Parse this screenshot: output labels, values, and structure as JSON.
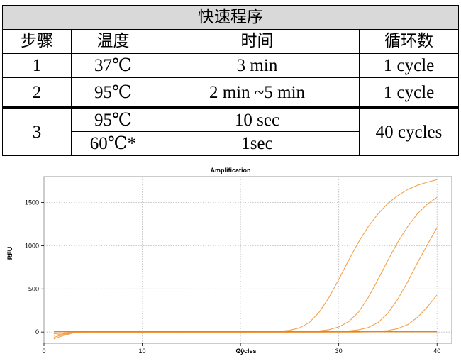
{
  "protocol": {
    "title": "快速程序",
    "headers": [
      "步骤",
      "温度",
      "时间",
      "循环数"
    ],
    "rows": [
      {
        "step": "1",
        "temp": "37℃",
        "time": "3 min",
        "cycles": "1 cycle"
      },
      {
        "step": "2",
        "temp": "95℃",
        "time": "2 min ~5 min",
        "cycles": "1 cycle"
      },
      {
        "step": "3",
        "temp_a": "95℃",
        "time_a": "10 sec",
        "temp_b": "60℃*",
        "time_b": "1sec",
        "cycles": "40 cycles"
      }
    ]
  },
  "chart_data": {
    "type": "line",
    "title": "Amplification",
    "xlabel": "Cycles",
    "ylabel": "RFU",
    "xlim": [
      0,
      41.5
    ],
    "ylim": [
      -130,
      1800
    ],
    "xticks": [
      0,
      10,
      20,
      30,
      40
    ],
    "yticks": [
      0,
      500,
      1000,
      1500
    ],
    "grid": true,
    "line_color": "#f5a04a",
    "baseline_color": "#f0820a",
    "x": [
      1,
      2,
      3,
      4,
      5,
      6,
      7,
      8,
      9,
      10,
      11,
      12,
      13,
      14,
      15,
      16,
      17,
      18,
      19,
      20,
      21,
      22,
      23,
      24,
      25,
      26,
      27,
      28,
      29,
      30,
      31,
      32,
      33,
      34,
      35,
      36,
      37,
      38,
      39,
      40
    ],
    "series": [
      {
        "values": [
          -80,
          -40,
          -10,
          0,
          0,
          0,
          0,
          0,
          0,
          0,
          0,
          0,
          0,
          0,
          0,
          0,
          0,
          0,
          0,
          0,
          0,
          0,
          4,
          9,
          20,
          48,
          110,
          230,
          400,
          610,
          830,
          1040,
          1220,
          1370,
          1490,
          1580,
          1650,
          1700,
          1735,
          1765
        ]
      },
      {
        "values": [
          -60,
          -30,
          -8,
          0,
          0,
          0,
          0,
          0,
          0,
          0,
          0,
          0,
          0,
          0,
          0,
          0,
          0,
          0,
          0,
          0,
          0,
          0,
          0,
          0,
          0,
          2,
          6,
          13,
          28,
          60,
          120,
          230,
          400,
          610,
          830,
          1040,
          1220,
          1370,
          1480,
          1560
        ]
      },
      {
        "values": [
          -40,
          -20,
          -5,
          0,
          0,
          0,
          0,
          0,
          0,
          0,
          0,
          0,
          0,
          0,
          0,
          0,
          0,
          0,
          0,
          0,
          0,
          0,
          0,
          0,
          0,
          0,
          0,
          0,
          2,
          6,
          13,
          25,
          52,
          110,
          220,
          380,
          580,
          800,
          1010,
          1210
        ]
      },
      {
        "values": [
          -20,
          -10,
          -3,
          0,
          0,
          0,
          0,
          0,
          0,
          0,
          0,
          0,
          0,
          0,
          0,
          0,
          0,
          0,
          0,
          0,
          0,
          0,
          0,
          0,
          0,
          0,
          0,
          0,
          0,
          0,
          0,
          0,
          3,
          8,
          18,
          40,
          85,
          170,
          290,
          430
        ]
      },
      {
        "values": [
          5,
          5,
          5,
          5,
          5,
          5,
          5,
          5,
          5,
          5,
          5,
          5,
          5,
          5,
          5,
          5,
          5,
          5,
          5,
          5,
          5,
          5,
          5,
          5,
          5,
          5,
          5,
          5,
          5,
          5,
          5,
          5,
          5,
          5,
          5,
          5,
          5,
          5,
          5,
          5
        ]
      }
    ]
  }
}
